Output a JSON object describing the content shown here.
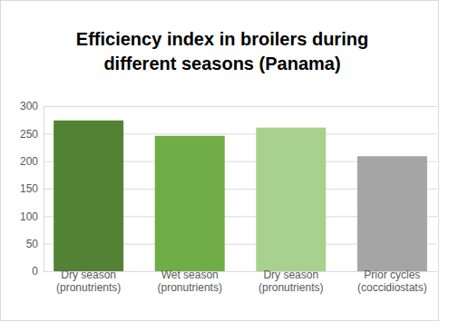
{
  "chart_data": {
    "type": "bar",
    "title": "Efficiency index in broilers during different seasons (Panama)",
    "categories": [
      "Dry season (pronutrients)",
      "Wet season (pronutrients)",
      "Dry season (pronutrients)",
      "Prior cycles (coccidiostats)"
    ],
    "values": [
      274,
      246,
      261,
      209
    ],
    "colors": [
      "#548235",
      "#70ad47",
      "#a9d18e",
      "#a5a5a5"
    ],
    "ylim": [
      0,
      300
    ],
    "yticks": [
      0,
      50,
      100,
      150,
      200,
      250,
      300
    ],
    "grid": true
  }
}
